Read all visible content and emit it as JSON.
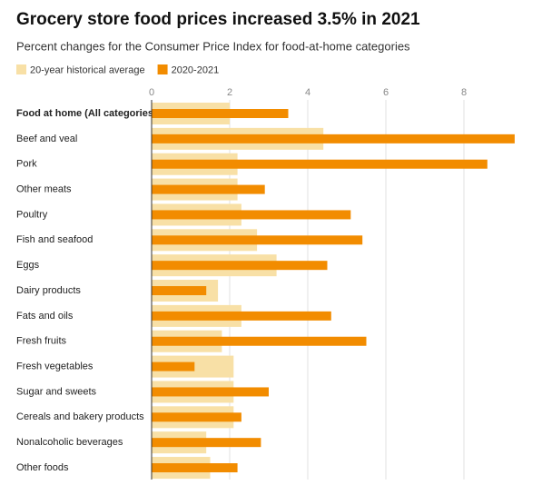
{
  "chart_data": {
    "type": "bar",
    "orientation": "horizontal",
    "title": "Grocery store food prices increased 3.5% in 2021",
    "subtitle": "Percent changes for the Consumer Price Index for food-at-home categories",
    "categories": [
      "Food at home (All categories)",
      "Beef and veal",
      "Pork",
      "Other meats",
      "Poultry",
      "Fish and seafood",
      "Eggs",
      "Dairy products",
      "Fats and oils",
      "Fresh fruits",
      "Fresh vegetables",
      "Sugar and sweets",
      "Cereals and bakery products",
      "Nonalcoholic beverages",
      "Other foods"
    ],
    "series": [
      {
        "name": "20-year historical average",
        "color": "#f8e0a6",
        "values": [
          2.0,
          4.4,
          2.2,
          2.2,
          2.3,
          2.7,
          3.2,
          1.7,
          2.3,
          1.8,
          2.1,
          2.1,
          2.1,
          1.4,
          1.5
        ]
      },
      {
        "name": "2020-2021",
        "color": "#f28c00",
        "values": [
          3.5,
          9.3,
          8.6,
          2.9,
          5.1,
          5.4,
          4.5,
          1.4,
          4.6,
          5.5,
          1.1,
          3.0,
          2.3,
          2.8,
          2.2
        ]
      }
    ],
    "xlim": [
      0,
      9.5
    ],
    "xticks": [
      0,
      2,
      4,
      6,
      8
    ],
    "grid": true
  }
}
